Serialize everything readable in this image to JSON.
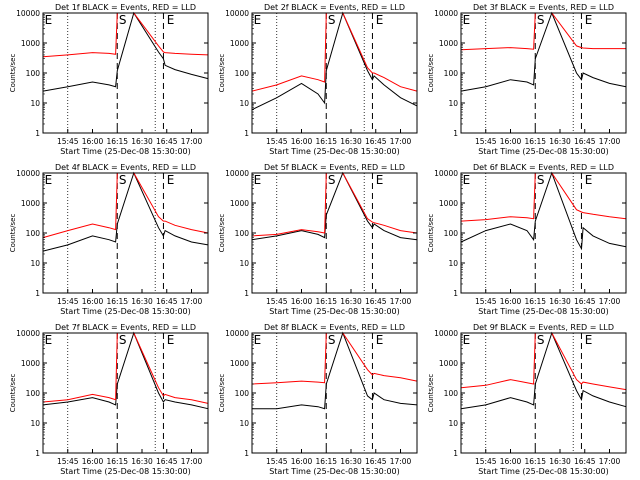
{
  "figure": {
    "xlabel": "Start Time (25-Dec-08 15:30:00)",
    "ylabel": "Counts/sec",
    "x_ticks": [
      "15:45",
      "16:00",
      "16:15",
      "16:30",
      "16:45",
      "17:00"
    ],
    "y_ticks": [
      "1",
      "10",
      "100",
      "1000",
      "10000"
    ],
    "colors": {
      "events": "#000000",
      "lld": "#ff0000",
      "axes": "#000000"
    }
  },
  "chart_data": [
    {
      "type": "line",
      "title": "Det 1f BLACK = Events, RED = LLD",
      "xlabel": "Start Time (25-Dec-08 15:30:00)",
      "ylabel": "Counts/sec",
      "ylim": [
        1,
        10000
      ],
      "yscale": "log",
      "markers": [
        "E",
        "S",
        "E"
      ],
      "x": [
        "15:30",
        "15:45",
        "16:00",
        "16:10",
        "16:14",
        "16:15",
        "16:25",
        "16:40",
        "16:43",
        "16:44",
        "16:50",
        "17:00",
        "17:10"
      ],
      "series": [
        {
          "values": [
            25,
            35,
            50,
            40,
            35,
            120,
            10000,
            500,
            300,
            180,
            130,
            90,
            65
          ]
        },
        {
          "values": [
            350,
            400,
            480,
            450,
            420,
            10000,
            10000,
            800,
            500,
            480,
            450,
            420,
            400
          ]
        }
      ]
    },
    {
      "type": "line",
      "title": "Det 2f BLACK = Events, RED = LLD",
      "xlabel": "Start Time (25-Dec-08 15:30:00)",
      "ylabel": "Counts/sec",
      "ylim": [
        1,
        10000
      ],
      "yscale": "log",
      "markers": [
        "E",
        "S",
        "E"
      ],
      "x": [
        "15:30",
        "15:45",
        "16:00",
        "16:10",
        "16:14",
        "16:15",
        "16:25",
        "16:40",
        "16:43",
        "16:44",
        "16:50",
        "17:00",
        "17:10"
      ],
      "series": [
        {
          "values": [
            6,
            15,
            45,
            20,
            10,
            120,
            10000,
            120,
            60,
            80,
            40,
            15,
            8
          ]
        },
        {
          "values": [
            25,
            40,
            80,
            60,
            50,
            10000,
            10000,
            150,
            100,
            100,
            70,
            35,
            25
          ]
        }
      ]
    },
    {
      "type": "line",
      "title": "Det 3f BLACK = Events, RED = LLD",
      "xlabel": "Start Time (25-Dec-08 15:30:00)",
      "ylabel": "Counts/sec",
      "ylim": [
        1,
        10000
      ],
      "yscale": "log",
      "markers": [
        "E",
        "S",
        "E"
      ],
      "x": [
        "15:30",
        "15:45",
        "16:00",
        "16:10",
        "16:14",
        "16:15",
        "16:25",
        "16:40",
        "16:43",
        "16:44",
        "16:50",
        "17:00",
        "17:10"
      ],
      "series": [
        {
          "values": [
            25,
            35,
            60,
            50,
            40,
            300,
            10000,
            100,
            60,
            100,
            70,
            45,
            35
          ]
        },
        {
          "values": [
            600,
            650,
            700,
            650,
            620,
            10000,
            10000,
            800,
            700,
            680,
            650,
            650,
            650
          ]
        }
      ]
    },
    {
      "type": "line",
      "title": "Det 4f BLACK = Events, RED = LLD",
      "xlabel": "Start Time (25-Dec-08 15:30:00)",
      "ylabel": "Counts/sec",
      "ylim": [
        1,
        10000
      ],
      "yscale": "log",
      "markers": [
        "E",
        "S",
        "E"
      ],
      "x": [
        "15:30",
        "15:45",
        "16:00",
        "16:10",
        "16:14",
        "16:15",
        "16:25",
        "16:40",
        "16:43",
        "16:44",
        "16:50",
        "17:00",
        "17:10"
      ],
      "series": [
        {
          "values": [
            25,
            40,
            80,
            60,
            50,
            200,
            10000,
            150,
            80,
            120,
            80,
            50,
            40
          ]
        },
        {
          "values": [
            70,
            120,
            200,
            150,
            130,
            10000,
            10000,
            350,
            250,
            250,
            180,
            130,
            100
          ]
        }
      ]
    },
    {
      "type": "line",
      "title": "Det 5f BLACK = Events, RED = LLD",
      "xlabel": "Start Time (25-Dec-08 15:30:00)",
      "ylabel": "Counts/sec",
      "ylim": [
        1,
        10000
      ],
      "yscale": "log",
      "markers": [
        "E",
        "S",
        "E"
      ],
      "x": [
        "15:30",
        "15:45",
        "16:00",
        "16:10",
        "16:14",
        "16:15",
        "16:25",
        "16:40",
        "16:43",
        "16:44",
        "16:50",
        "17:00",
        "17:10"
      ],
      "series": [
        {
          "values": [
            60,
            80,
            120,
            90,
            70,
            400,
            10000,
            250,
            150,
            200,
            120,
            70,
            60
          ]
        },
        {
          "values": [
            80,
            90,
            130,
            110,
            100,
            10000,
            10000,
            300,
            230,
            220,
            180,
            120,
            100
          ]
        }
      ]
    },
    {
      "type": "line",
      "title": "Det 6f BLACK = Events, RED = LLD",
      "xlabel": "Start Time (25-Dec-08 15:30:00)",
      "ylabel": "Counts/sec",
      "ylim": [
        1,
        10000
      ],
      "yscale": "log",
      "markers": [
        "E",
        "S",
        "E"
      ],
      "x": [
        "15:30",
        "15:45",
        "16:00",
        "16:10",
        "16:14",
        "16:15",
        "16:25",
        "16:40",
        "16:43",
        "16:44",
        "16:50",
        "17:00",
        "17:10"
      ],
      "series": [
        {
          "values": [
            50,
            120,
            200,
            120,
            60,
            250,
            10000,
            60,
            30,
            150,
            80,
            45,
            35
          ]
        },
        {
          "values": [
            250,
            280,
            350,
            320,
            300,
            10000,
            10000,
            600,
            500,
            480,
            420,
            350,
            300
          ]
        }
      ]
    },
    {
      "type": "line",
      "title": "Det 7f BLACK = Events, RED = LLD",
      "xlabel": "Start Time (25-Dec-08 15:30:00)",
      "ylabel": "Counts/sec",
      "ylim": [
        1,
        10000
      ],
      "yscale": "log",
      "markers": [
        "E",
        "S",
        "E"
      ],
      "x": [
        "15:30",
        "15:45",
        "16:00",
        "16:10",
        "16:14",
        "16:15",
        "16:25",
        "16:40",
        "16:43",
        "16:44",
        "16:50",
        "17:00",
        "17:10"
      ],
      "series": [
        {
          "values": [
            40,
            50,
            70,
            50,
            40,
            200,
            10000,
            100,
            50,
            60,
            50,
            40,
            30
          ]
        },
        {
          "values": [
            50,
            60,
            90,
            70,
            60,
            10000,
            10000,
            150,
            80,
            90,
            70,
            60,
            45
          ]
        }
      ]
    },
    {
      "type": "line",
      "title": "Det 8f BLACK = Events, RED = LLD",
      "xlabel": "Start Time (25-Dec-08 15:30:00)",
      "ylabel": "Counts/sec",
      "ylim": [
        1,
        10000
      ],
      "yscale": "log",
      "markers": [
        "E",
        "S",
        "E"
      ],
      "x": [
        "15:30",
        "15:45",
        "16:00",
        "16:10",
        "16:14",
        "16:15",
        "16:25",
        "16:40",
        "16:43",
        "16:44",
        "16:50",
        "17:00",
        "17:10"
      ],
      "series": [
        {
          "values": [
            30,
            30,
            40,
            35,
            30,
            200,
            10000,
            80,
            60,
            100,
            60,
            45,
            40
          ]
        },
        {
          "values": [
            200,
            220,
            250,
            230,
            220,
            10000,
            10000,
            600,
            400,
            450,
            380,
            320,
            250
          ]
        }
      ]
    },
    {
      "type": "line",
      "title": "Det 9f BLACK = Events, RED = LLD",
      "xlabel": "Start Time (25-Dec-08 15:30:00)",
      "ylabel": "Counts/sec",
      "ylim": [
        1,
        10000
      ],
      "yscale": "log",
      "markers": [
        "E",
        "S",
        "E"
      ],
      "x": [
        "15:30",
        "15:45",
        "16:00",
        "16:10",
        "16:14",
        "16:15",
        "16:25",
        "16:40",
        "16:43",
        "16:44",
        "16:50",
        "17:00",
        "17:10"
      ],
      "series": [
        {
          "values": [
            30,
            40,
            70,
            50,
            40,
            200,
            10000,
            120,
            60,
            120,
            80,
            50,
            35
          ]
        },
        {
          "values": [
            150,
            180,
            280,
            220,
            200,
            10000,
            10000,
            280,
            200,
            230,
            200,
            160,
            130
          ]
        }
      ]
    }
  ]
}
